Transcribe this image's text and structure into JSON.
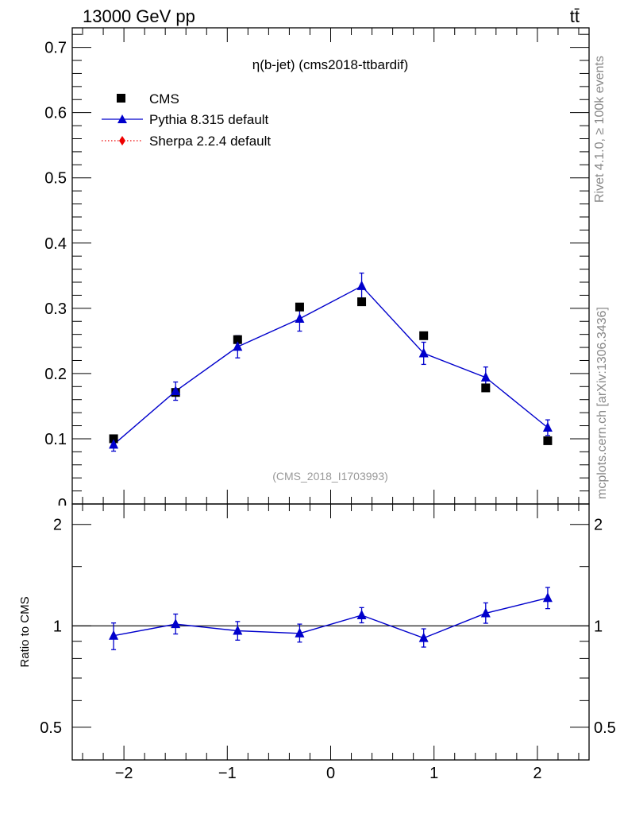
{
  "header": {
    "left_label": "13000 GeV pp",
    "right_label": "tt̄"
  },
  "side_labels": {
    "rivet": "Rivet 4.1.0, ≥ 100k events",
    "source": "mcplots.cern.ch [arXiv:1306.3436]"
  },
  "colors": {
    "data": "#000000",
    "pythia": "#0000cc",
    "sherpa": "#ee0000",
    "watermark": "#999999"
  },
  "chart_data": [
    {
      "type": "scatter",
      "title": "η(b-jet) (cms2018-ttbardif)",
      "watermark": "(CMS_2018_I1703993)",
      "xlim": [
        -2.5,
        2.5
      ],
      "ylim": [
        0,
        0.73
      ],
      "xticks": [
        -2,
        -1,
        0,
        1,
        2
      ],
      "xtick_labels": [
        "−2",
        "−1",
        "0",
        "1",
        "2"
      ],
      "yticks": [
        0,
        0.1,
        0.2,
        0.3,
        0.4,
        0.5,
        0.6,
        0.7
      ],
      "ytick_labels": [
        "0",
        "0.1",
        "0.2",
        "0.3",
        "0.4",
        "0.5",
        "0.6",
        "0.7"
      ],
      "legend": {
        "position": "top-left",
        "entries": [
          "CMS",
          "Pythia 8.315 default",
          "Sherpa 2.2.4 default"
        ]
      },
      "x": [
        -2.1,
        -1.5,
        -0.9,
        -0.3,
        0.3,
        0.9,
        1.5,
        2.1
      ],
      "series": [
        {
          "name": "CMS",
          "marker": "square",
          "values": [
            0.1,
            0.171,
            0.252,
            0.302,
            0.31,
            0.258,
            0.178,
            0.097
          ]
        },
        {
          "name": "Pythia 8.315 default",
          "marker": "triangle",
          "line": true,
          "values": [
            0.091,
            0.173,
            0.241,
            0.284,
            0.334,
            0.231,
            0.194,
            0.117
          ],
          "errors": [
            0.01,
            0.014,
            0.017,
            0.019,
            0.02,
            0.017,
            0.016,
            0.012
          ]
        },
        {
          "name": "Sherpa 2.2.4 default",
          "marker": "diamond",
          "line_style": "dotted",
          "values": []
        }
      ]
    },
    {
      "type": "line",
      "ylabel": "Ratio to CMS",
      "log_y": true,
      "xlim": [
        -2.5,
        2.5
      ],
      "ylim": [
        0.4,
        2.3
      ],
      "yticks": [
        0.5,
        1,
        2
      ],
      "ytick_labels": [
        "0.5",
        "1",
        "2"
      ],
      "reference_line": 1,
      "x": [
        -2.1,
        -1.5,
        -0.9,
        -0.3,
        0.3,
        0.9,
        1.5,
        2.1
      ],
      "series": [
        {
          "name": "Pythia 8.315 default",
          "values": [
            0.935,
            1.012,
            0.967,
            0.95,
            1.075,
            0.92,
            1.09,
            1.21
          ],
          "err_up": [
            0.085,
            0.072,
            0.063,
            0.062,
            0.058,
            0.06,
            0.08,
            0.09
          ],
          "err_down": [
            0.085,
            0.066,
            0.06,
            0.055,
            0.054,
            0.055,
            0.072,
            0.085
          ]
        }
      ]
    }
  ]
}
